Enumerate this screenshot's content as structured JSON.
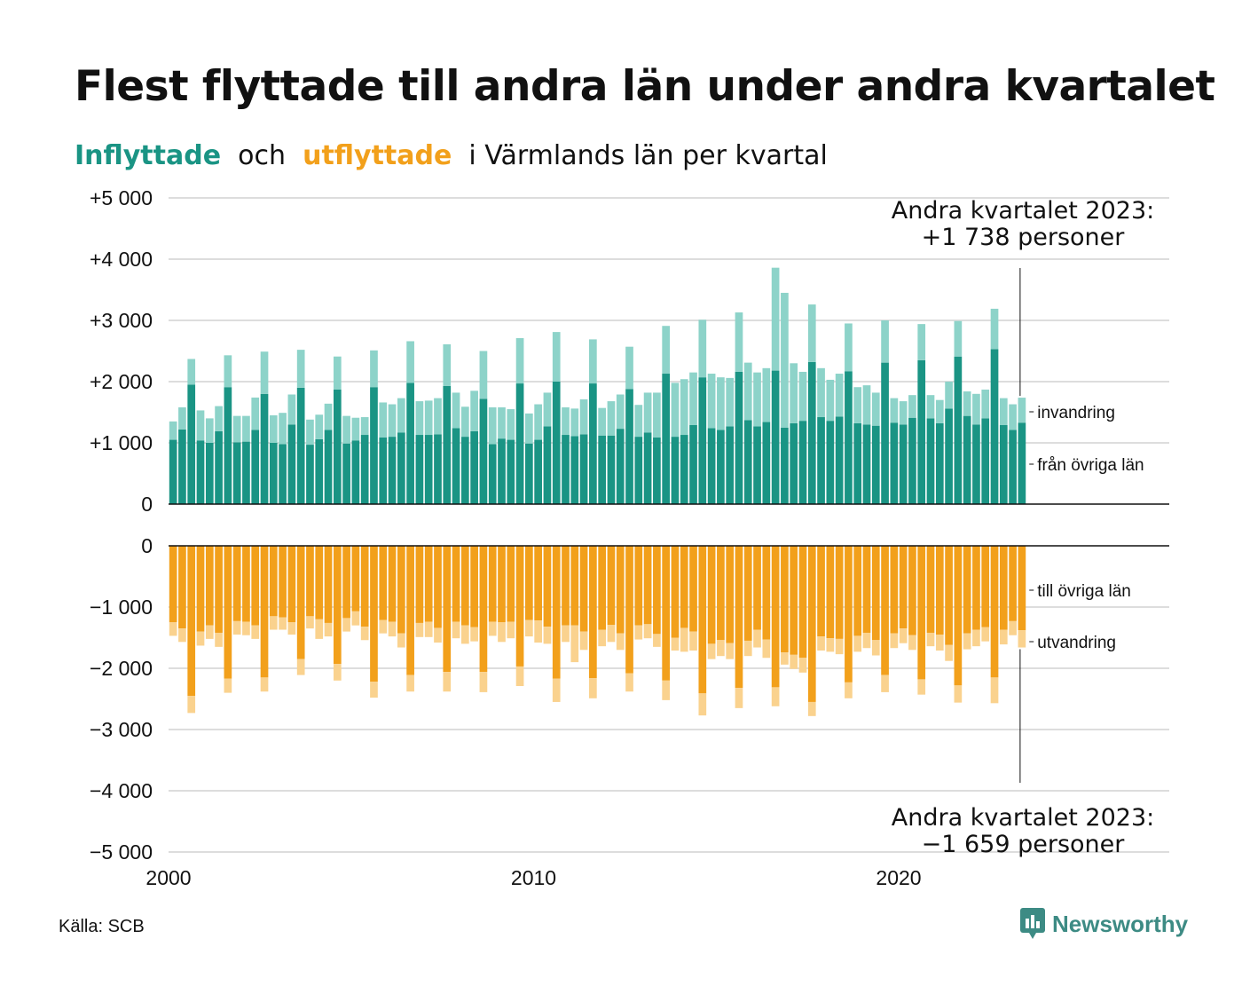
{
  "header": {
    "title": "Flest flyttade till andra län under andra kvartalet",
    "subtitle_in": "Inflyttade",
    "subtitle_mid": "och",
    "subtitle_out": "utflyttade",
    "subtitle_rest": "i Värmlands län per kvartal"
  },
  "colors": {
    "in_dark": "#1a9484",
    "in_light": "#8dd3c9",
    "out_dark": "#f2a01b",
    "out_light": "#fad28e",
    "grid": "#dddddd",
    "axis": "#111111"
  },
  "footer": {
    "source": "Källa: SCB",
    "brand": "Newsworthy"
  },
  "chart_data": {
    "type": "bar",
    "x_start": "2000 Q1",
    "x_end": "2023 Q2",
    "x_ticks": [
      "2000",
      "2010",
      "2020"
    ],
    "top_panel": {
      "y_ticks": [
        "+5 000",
        "+4 000",
        "+3 000",
        "+2 000",
        "+1 000",
        "0"
      ],
      "ylim": [
        0,
        5000
      ],
      "annotation_line1": "Andra kvartalet 2023:",
      "annotation_line2": "+1 738 personer",
      "series_labels": [
        "invandring",
        "från övriga län"
      ],
      "fran_ovriga_lan": [
        1050,
        1220,
        1950,
        1040,
        1000,
        1190,
        1910,
        1010,
        1020,
        1210,
        1800,
        1000,
        980,
        1300,
        1900,
        970,
        1060,
        1210,
        1870,
        990,
        1040,
        1130,
        1910,
        1090,
        1100,
        1170,
        1980,
        1130,
        1130,
        1140,
        1930,
        1240,
        1100,
        1190,
        1720,
        980,
        1070,
        1050,
        1970,
        990,
        1050,
        1270,
        2000,
        1130,
        1110,
        1140,
        1970,
        1120,
        1120,
        1230,
        1880,
        1100,
        1170,
        1090,
        2130,
        1100,
        1130,
        1290,
        2070,
        1240,
        1210,
        1270,
        2160,
        1370,
        1270,
        1340,
        2180,
        1250,
        1320,
        1360,
        2320,
        1420,
        1360,
        1430,
        2170,
        1320,
        1300,
        1280,
        2310,
        1330,
        1300,
        1410,
        2350,
        1400,
        1320,
        1560,
        2410,
        1440,
        1300,
        1400,
        2530,
        1290,
        1210,
        1330
      ],
      "invandring": [
        300,
        360,
        420,
        490,
        400,
        410,
        520,
        430,
        420,
        530,
        690,
        450,
        510,
        490,
        620,
        410,
        400,
        430,
        540,
        450,
        370,
        290,
        600,
        570,
        530,
        560,
        680,
        550,
        560,
        590,
        680,
        580,
        490,
        660,
        780,
        600,
        510,
        500,
        740,
        490,
        580,
        550,
        810,
        450,
        450,
        570,
        720,
        450,
        560,
        560,
        690,
        520,
        650,
        730,
        780,
        880,
        910,
        860,
        940,
        890,
        860,
        790,
        970,
        940,
        880,
        880,
        1680,
        2200,
        980,
        800,
        940,
        800,
        670,
        700,
        780,
        590,
        640,
        540,
        690,
        400,
        380,
        370,
        590,
        380,
        380,
        440,
        580,
        400,
        500,
        470,
        660,
        440,
        420,
        408
      ]
    },
    "bottom_panel": {
      "y_ticks": [
        "0",
        "−1 000",
        "−2 000",
        "−3 000",
        "−4 000",
        "−5 000"
      ],
      "ylim": [
        -5000,
        0
      ],
      "annotation_line1": "Andra kvartalet 2023:",
      "annotation_line2": "−1 659 personer",
      "series_labels": [
        "till övriga län",
        "utvandring"
      ],
      "till_ovriga_lan": [
        1250,
        1350,
        2450,
        1400,
        1300,
        1420,
        2170,
        1230,
        1240,
        1300,
        2150,
        1150,
        1170,
        1250,
        1850,
        1150,
        1200,
        1260,
        1930,
        1180,
        1070,
        1320,
        2220,
        1210,
        1240,
        1430,
        2110,
        1260,
        1240,
        1340,
        2060,
        1240,
        1300,
        1330,
        2060,
        1240,
        1250,
        1240,
        1970,
        1210,
        1220,
        1320,
        2170,
        1300,
        1300,
        1400,
        2160,
        1370,
        1290,
        1430,
        2080,
        1300,
        1280,
        1440,
        2200,
        1500,
        1340,
        1400,
        2410,
        1600,
        1540,
        1590,
        2320,
        1550,
        1370,
        1530,
        2310,
        1740,
        1780,
        1830,
        2550,
        1480,
        1510,
        1520,
        2230,
        1470,
        1420,
        1540,
        2110,
        1430,
        1350,
        1460,
        2180,
        1420,
        1450,
        1620,
        2280,
        1430,
        1370,
        1330,
        2150,
        1370,
        1230,
        1380
      ],
      "utvandring": [
        220,
        220,
        280,
        230,
        220,
        230,
        230,
        220,
        220,
        220,
        230,
        220,
        200,
        200,
        260,
        200,
        320,
        220,
        270,
        220,
        230,
        220,
        260,
        220,
        240,
        230,
        270,
        230,
        250,
        240,
        320,
        270,
        300,
        230,
        330,
        230,
        320,
        270,
        320,
        270,
        360,
        280,
        380,
        270,
        600,
        300,
        330,
        270,
        280,
        270,
        300,
        230,
        230,
        210,
        320,
        210,
        390,
        310,
        360,
        250,
        260,
        260,
        330,
        250,
        290,
        300,
        310,
        200,
        230,
        240,
        230,
        230,
        220,
        250,
        260,
        260,
        250,
        250,
        280,
        240,
        240,
        240,
        250,
        220,
        260,
        260,
        280,
        260,
        270,
        230,
        420,
        240,
        230,
        280
      ]
    }
  }
}
